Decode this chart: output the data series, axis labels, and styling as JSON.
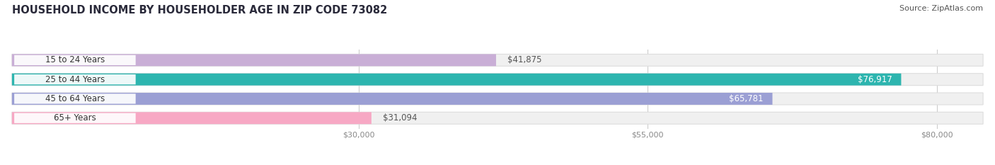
{
  "title": "HOUSEHOLD INCOME BY HOUSEHOLDER AGE IN ZIP CODE 73082",
  "source": "Source: ZipAtlas.com",
  "categories": [
    "15 to 24 Years",
    "25 to 44 Years",
    "45 to 64 Years",
    "65+ Years"
  ],
  "values": [
    41875,
    76917,
    65781,
    31094
  ],
  "bar_colors": [
    "#c9aed6",
    "#2db5af",
    "#9b9fd4",
    "#f7a8c4"
  ],
  "bar_labels": [
    "$41,875",
    "$76,917",
    "$65,781",
    "$31,094"
  ],
  "label_inside": [
    false,
    true,
    true,
    false
  ],
  "x_ticks": [
    30000,
    55000,
    80000
  ],
  "x_tick_labels": [
    "$30,000",
    "$55,000",
    "$80,000"
  ],
  "x_min": 0,
  "x_max": 84000,
  "background_color": "#ffffff",
  "bar_bg_color": "#f0f0f0",
  "bar_bg_border": "#dddddd",
  "title_fontsize": 10.5,
  "source_fontsize": 8,
  "bar_height": 0.62,
  "label_color_inside": "#ffffff",
  "label_color_outside": "#555555",
  "category_label_bg": "#ffffff",
  "category_label_color": "#333333",
  "grid_color": "#cccccc",
  "tick_color": "#888888"
}
